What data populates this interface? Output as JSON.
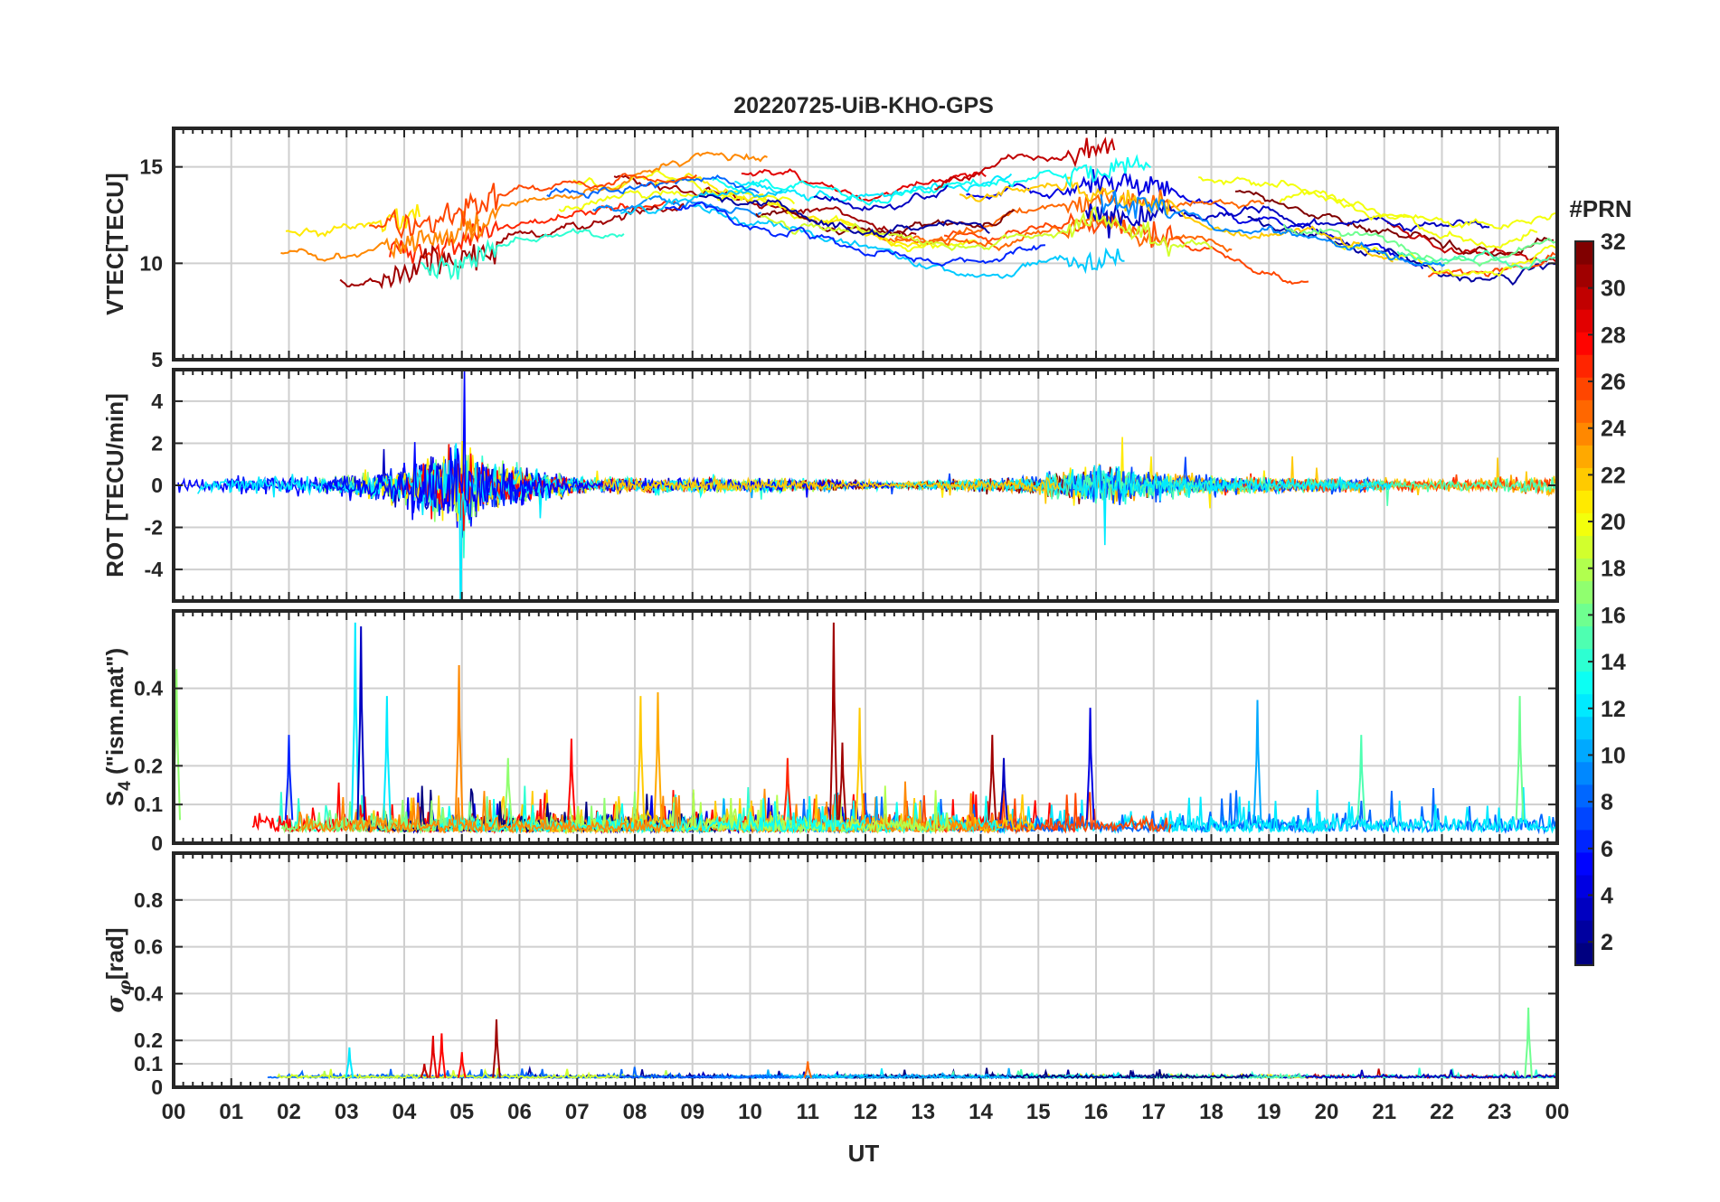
{
  "chart_data": {
    "type": "line",
    "title": "20220725-UiB-KHO-GPS",
    "xlabel": "UT",
    "x_range": [
      0,
      24
    ],
    "x_tick_labels": [
      "00",
      "01",
      "02",
      "03",
      "04",
      "05",
      "06",
      "07",
      "08",
      "09",
      "10",
      "11",
      "12",
      "13",
      "14",
      "15",
      "16",
      "17",
      "18",
      "19",
      "20",
      "21",
      "22",
      "23",
      "00"
    ],
    "colorbar": {
      "title": "#PRN",
      "range": [
        1,
        32
      ],
      "tick_labels": [
        "32",
        "30",
        "28",
        "26",
        "24",
        "22",
        "20",
        "18",
        "16",
        "14",
        "12",
        "10",
        "8",
        "6",
        "4",
        "2"
      ],
      "tick_values": [
        32,
        30,
        28,
        26,
        24,
        22,
        20,
        18,
        16,
        14,
        12,
        10,
        8,
        6,
        4,
        2
      ]
    },
    "panels": [
      {
        "key": "vtec",
        "ylabel": "VTEC[TECU]",
        "ylim": [
          5,
          17
        ],
        "ytick_values": [
          5,
          10,
          15
        ],
        "ytick_labels": [
          "5",
          "10",
          "15"
        ],
        "baseline_profile": [
          [
            0,
            10.6
          ],
          [
            2,
            10.8
          ],
          [
            3,
            10.7
          ],
          [
            4,
            10.9
          ],
          [
            5,
            11.5
          ],
          [
            6,
            12.8
          ],
          [
            7,
            13.5
          ],
          [
            8,
            13.8
          ],
          [
            9,
            14.0
          ],
          [
            10,
            13.8
          ],
          [
            11,
            13.3
          ],
          [
            12,
            12.8
          ],
          [
            13,
            12.6
          ],
          [
            14,
            12.9
          ],
          [
            15,
            13.6
          ],
          [
            16,
            14.1
          ],
          [
            17,
            13.6
          ],
          [
            18,
            13.0
          ],
          [
            19,
            12.6
          ],
          [
            20,
            12.0
          ],
          [
            21,
            11.3
          ],
          [
            22,
            10.6
          ],
          [
            23,
            10.4
          ],
          [
            24,
            11.0
          ]
        ]
      },
      {
        "key": "rot",
        "ylabel": "ROT [TECU/min]",
        "ylim": [
          -5.5,
          5.5
        ],
        "ytick_values": [
          -4,
          -2,
          0,
          2,
          4
        ],
        "ytick_labels": [
          "-4",
          "-2",
          "0",
          "2",
          "4"
        ],
        "activity_profile": [
          [
            0,
            0.3
          ],
          [
            3,
            0.4
          ],
          [
            4,
            0.8
          ],
          [
            5,
            1.8
          ],
          [
            5.5,
            0.9
          ],
          [
            7,
            0.3
          ],
          [
            11,
            0.25
          ],
          [
            12.5,
            0.1
          ],
          [
            15,
            0.35
          ],
          [
            16,
            0.8
          ],
          [
            17,
            0.5
          ],
          [
            19,
            0.3
          ],
          [
            22,
            0.2
          ],
          [
            24,
            0.4
          ]
        ]
      },
      {
        "key": "s4",
        "ylabel": "S4 (\"ism.mat\")",
        "ylim": [
          0,
          0.6
        ],
        "ytick_values": [
          0,
          0.1,
          0.2,
          0.4
        ],
        "ytick_labels": [
          "0",
          "0.1",
          "0.2",
          "0.4"
        ],
        "spikes": [
          {
            "t": 0.05,
            "v": 0.45,
            "prn": 17
          },
          {
            "t": 2.0,
            "v": 0.28,
            "prn": 6
          },
          {
            "t": 3.15,
            "v": 0.57,
            "prn": 12
          },
          {
            "t": 3.25,
            "v": 0.56,
            "prn": 3
          },
          {
            "t": 3.7,
            "v": 0.38,
            "prn": 12
          },
          {
            "t": 4.95,
            "v": 0.46,
            "prn": 24
          },
          {
            "t": 5.8,
            "v": 0.22,
            "prn": 17
          },
          {
            "t": 6.9,
            "v": 0.27,
            "prn": 28
          },
          {
            "t": 8.1,
            "v": 0.38,
            "prn": 22
          },
          {
            "t": 8.4,
            "v": 0.39,
            "prn": 23
          },
          {
            "t": 10.65,
            "v": 0.22,
            "prn": 27
          },
          {
            "t": 11.45,
            "v": 0.57,
            "prn": 31
          },
          {
            "t": 11.6,
            "v": 0.26,
            "prn": 31
          },
          {
            "t": 11.9,
            "v": 0.35,
            "prn": 22
          },
          {
            "t": 14.2,
            "v": 0.28,
            "prn": 31
          },
          {
            "t": 14.4,
            "v": 0.22,
            "prn": 3
          },
          {
            "t": 15.9,
            "v": 0.35,
            "prn": 4
          },
          {
            "t": 18.8,
            "v": 0.37,
            "prn": 10
          },
          {
            "t": 20.6,
            "v": 0.28,
            "prn": 15
          },
          {
            "t": 23.35,
            "v": 0.38,
            "prn": 16
          }
        ]
      },
      {
        "key": "sigma_phi",
        "ylabel": "σφ[rad]",
        "ylim": [
          0,
          1
        ],
        "ytick_values": [
          0,
          0.1,
          0.2,
          0.4,
          0.6,
          0.8
        ],
        "ytick_labels": [
          "0",
          "0.1",
          "0.2",
          "0.4",
          "0.6",
          "0.8"
        ],
        "spikes": [
          {
            "t": 3.05,
            "v": 0.17,
            "prn": 12
          },
          {
            "t": 4.35,
            "v": 0.1,
            "prn": 30
          },
          {
            "t": 4.5,
            "v": 0.22,
            "prn": 29
          },
          {
            "t": 4.65,
            "v": 0.23,
            "prn": 28
          },
          {
            "t": 5.0,
            "v": 0.15,
            "prn": 28
          },
          {
            "t": 5.6,
            "v": 0.29,
            "prn": 31
          },
          {
            "t": 11.0,
            "v": 0.11,
            "prn": 25
          },
          {
            "t": 23.5,
            "v": 0.34,
            "prn": 16
          }
        ]
      }
    ]
  }
}
